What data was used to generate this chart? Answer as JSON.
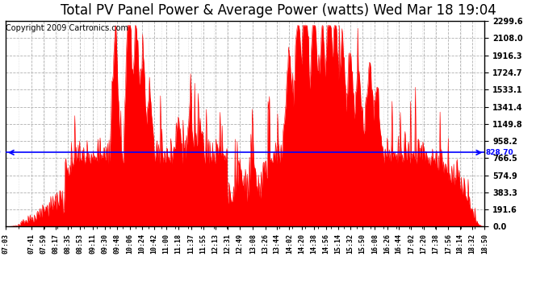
{
  "title": "Total PV Panel Power & Average Power (watts) Wed Mar 18 19:04",
  "copyright": "Copyright 2009 Cartronics.com",
  "average_line": 828.7,
  "ymax": 2299.6,
  "ymin": 0.0,
  "yticks": [
    0.0,
    191.6,
    383.3,
    574.9,
    766.5,
    958.2,
    1149.8,
    1341.4,
    1533.1,
    1724.7,
    1916.3,
    2108.0,
    2299.6
  ],
  "xtick_labels": [
    "07:03",
    "07:41",
    "07:59",
    "08:17",
    "08:35",
    "08:53",
    "09:11",
    "09:30",
    "09:48",
    "10:06",
    "10:24",
    "10:42",
    "11:00",
    "11:18",
    "11:37",
    "11:55",
    "12:13",
    "12:31",
    "12:49",
    "13:08",
    "13:26",
    "13:44",
    "14:02",
    "14:20",
    "14:38",
    "14:56",
    "15:14",
    "15:32",
    "15:50",
    "16:08",
    "16:26",
    "16:44",
    "17:02",
    "17:20",
    "17:38",
    "17:56",
    "18:14",
    "18:32",
    "18:50"
  ],
  "fill_color": "#FF0000",
  "line_color": "#0000FF",
  "bg_color": "#FFFFFF",
  "grid_color": "#B0B0B0",
  "title_fontsize": 12,
  "copyright_fontsize": 7
}
